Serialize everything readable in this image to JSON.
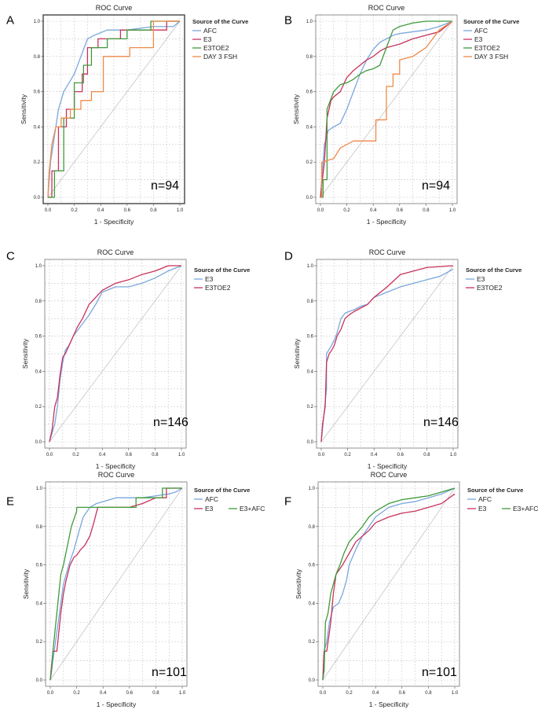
{
  "colors": {
    "blue": "#7aa7dd",
    "red": "#c8325a",
    "green": "#3f9a3a",
    "orange": "#ef8a4a"
  },
  "chart_data": [
    {
      "panel": "A",
      "type": "line",
      "title": "ROC Curve",
      "xlabel": "1 - Specificity",
      "ylabel": "Sensitivity",
      "xlim": [
        0,
        1
      ],
      "ylim": [
        0,
        1
      ],
      "xticks": [
        "0.0",
        "0.2",
        "0.4",
        "0.6",
        "0.8",
        "1.0"
      ],
      "yticks": [
        "0.0",
        "0.2",
        "0.4",
        "0.6",
        "0.8",
        "1.0"
      ],
      "legend_title": "Source of the Curve",
      "legend_position": "right",
      "annotation": "n=94",
      "grid": true,
      "series": [
        {
          "name": "AFC",
          "color": "blue",
          "x": [
            0,
            0.02,
            0.05,
            0.08,
            0.12,
            0.16,
            0.2,
            0.25,
            0.3,
            0.35,
            0.45,
            0.6,
            0.8,
            0.95,
            1
          ],
          "y": [
            0,
            0.2,
            0.35,
            0.5,
            0.6,
            0.65,
            0.7,
            0.8,
            0.9,
            0.92,
            0.95,
            0.95,
            0.97,
            0.97,
            1
          ]
        },
        {
          "name": "E3",
          "color": "red",
          "x": [
            0,
            0.03,
            0.03,
            0.08,
            0.08,
            0.14,
            0.14,
            0.2,
            0.2,
            0.26,
            0.26,
            0.3,
            0.3,
            0.38,
            0.38,
            0.55,
            0.55,
            0.9,
            0.9,
            1
          ],
          "y": [
            0,
            0,
            0.15,
            0.15,
            0.4,
            0.4,
            0.5,
            0.5,
            0.6,
            0.6,
            0.7,
            0.7,
            0.85,
            0.85,
            0.9,
            0.9,
            0.95,
            0.95,
            1,
            1
          ]
        },
        {
          "name": "E3TOE2",
          "color": "green",
          "x": [
            0,
            0.05,
            0.05,
            0.12,
            0.12,
            0.2,
            0.2,
            0.27,
            0.27,
            0.33,
            0.33,
            0.45,
            0.45,
            0.6,
            0.6,
            0.78,
            0.78,
            1
          ],
          "y": [
            0,
            0,
            0.15,
            0.15,
            0.45,
            0.45,
            0.65,
            0.65,
            0.75,
            0.75,
            0.85,
            0.85,
            0.9,
            0.9,
            0.95,
            0.95,
            1,
            1
          ]
        },
        {
          "name": "DAY 3 FSH",
          "color": "orange",
          "x": [
            0,
            0.01,
            0.03,
            0.06,
            0.1,
            0.1,
            0.17,
            0.17,
            0.25,
            0.25,
            0.33,
            0.33,
            0.42,
            0.42,
            0.62,
            0.62,
            0.8,
            0.8,
            1
          ],
          "y": [
            0,
            0.15,
            0.3,
            0.4,
            0.4,
            0.45,
            0.45,
            0.5,
            0.5,
            0.55,
            0.55,
            0.6,
            0.6,
            0.8,
            0.8,
            0.85,
            0.85,
            1,
            1
          ]
        }
      ]
    },
    {
      "panel": "B",
      "type": "line",
      "title": "ROC Curve",
      "xlabel": "1 - Specificity",
      "ylabel": "Sensitivity",
      "xlim": [
        0,
        1
      ],
      "ylim": [
        0,
        1
      ],
      "xticks": [
        "0.0",
        "0.2",
        "0.4",
        "0.6",
        "0.8",
        "1.0"
      ],
      "yticks": [
        "0.0",
        "0.2",
        "0.4",
        "0.6",
        "0.8",
        "1.0"
      ],
      "legend_title": "Source of the Curve",
      "legend_position": "right",
      "annotation": "n=94",
      "grid": true,
      "series": [
        {
          "name": "AFC",
          "color": "blue",
          "x": [
            0,
            0.03,
            0.06,
            0.1,
            0.15,
            0.2,
            0.25,
            0.3,
            0.35,
            0.4,
            0.45,
            0.5,
            0.55,
            0.6,
            0.7,
            0.8,
            0.9,
            1
          ],
          "y": [
            0,
            0.3,
            0.38,
            0.4,
            0.42,
            0.5,
            0.6,
            0.7,
            0.78,
            0.84,
            0.88,
            0.9,
            0.92,
            0.93,
            0.94,
            0.95,
            0.97,
            1
          ]
        },
        {
          "name": "E3",
          "color": "red",
          "x": [
            0,
            0.03,
            0.05,
            0.08,
            0.1,
            0.15,
            0.2,
            0.25,
            0.3,
            0.35,
            0.4,
            0.45,
            0.5,
            0.6,
            0.7,
            0.8,
            0.9,
            1
          ],
          "y": [
            0,
            0.2,
            0.45,
            0.55,
            0.57,
            0.6,
            0.68,
            0.72,
            0.75,
            0.78,
            0.8,
            0.83,
            0.85,
            0.87,
            0.9,
            0.92,
            0.94,
            1
          ]
        },
        {
          "name": "E3TOE2",
          "color": "green",
          "x": [
            0,
            0.02,
            0.02,
            0.05,
            0.05,
            0.1,
            0.15,
            0.2,
            0.25,
            0.3,
            0.35,
            0.4,
            0.45,
            0.5,
            0.55,
            0.6,
            0.7,
            0.8,
            1
          ],
          "y": [
            0,
            0,
            0.1,
            0.1,
            0.5,
            0.6,
            0.64,
            0.65,
            0.67,
            0.7,
            0.72,
            0.73,
            0.75,
            0.85,
            0.95,
            0.97,
            0.99,
            1,
            1
          ]
        },
        {
          "name": "DAY 3 FSH",
          "color": "orange",
          "x": [
            0,
            0.01,
            0.01,
            0.1,
            0.15,
            0.2,
            0.25,
            0.42,
            0.42,
            0.5,
            0.5,
            0.55,
            0.55,
            0.6,
            0.6,
            0.7,
            0.8,
            0.9,
            1
          ],
          "y": [
            0,
            0,
            0.2,
            0.22,
            0.28,
            0.3,
            0.32,
            0.32,
            0.44,
            0.44,
            0.63,
            0.63,
            0.7,
            0.7,
            0.78,
            0.8,
            0.85,
            0.95,
            1
          ]
        }
      ]
    },
    {
      "panel": "C",
      "type": "line",
      "title": "ROC Curve",
      "xlabel": "1 - Specificity",
      "ylabel": "Sensitivity",
      "xlim": [
        0,
        1
      ],
      "ylim": [
        0,
        1
      ],
      "xticks": [
        "0.0",
        "0.2",
        "0.4",
        "0.6",
        "0.8",
        "1.0"
      ],
      "yticks": [
        "0.0",
        "0.2",
        "0.4",
        "0.6",
        "0.8",
        "1.0"
      ],
      "legend_title": "Source of the Curve",
      "legend_position": "right",
      "annotation": "n=146",
      "grid": true,
      "series": [
        {
          "name": "E3",
          "color": "blue",
          "x": [
            0,
            0.02,
            0.04,
            0.06,
            0.08,
            0.1,
            0.12,
            0.15,
            0.18,
            0.21,
            0.25,
            0.3,
            0.35,
            0.4,
            0.5,
            0.6,
            0.7,
            0.8,
            0.9,
            1
          ],
          "y": [
            0,
            0.05,
            0.1,
            0.2,
            0.35,
            0.45,
            0.52,
            0.55,
            0.6,
            0.63,
            0.67,
            0.72,
            0.78,
            0.85,
            0.88,
            0.88,
            0.9,
            0.93,
            0.97,
            1
          ]
        },
        {
          "name": "E3TOE2",
          "color": "red",
          "x": [
            0,
            0.02,
            0.04,
            0.06,
            0.08,
            0.1,
            0.12,
            0.15,
            0.18,
            0.21,
            0.25,
            0.3,
            0.35,
            0.4,
            0.5,
            0.6,
            0.7,
            0.8,
            0.9,
            1
          ],
          "y": [
            0,
            0.07,
            0.2,
            0.25,
            0.38,
            0.48,
            0.5,
            0.55,
            0.6,
            0.65,
            0.7,
            0.78,
            0.82,
            0.86,
            0.9,
            0.92,
            0.95,
            0.97,
            1,
            1
          ]
        }
      ]
    },
    {
      "panel": "D",
      "type": "line",
      "title": "ROC Curve",
      "xlabel": "1 - Specificity",
      "ylabel": "Sensitivity",
      "xlim": [
        0,
        1
      ],
      "ylim": [
        0,
        1
      ],
      "xticks": [
        "0.0",
        "0.2",
        "0.4",
        "0.6",
        "0.8",
        "1.0"
      ],
      "yticks": [
        "0.0",
        "0.2",
        "0.4",
        "0.6",
        "0.8",
        "1.0"
      ],
      "legend_title": "Source of the Curve",
      "legend_position": "right",
      "annotation": "n=146",
      "grid": true,
      "series": [
        {
          "name": "E3",
          "color": "blue",
          "x": [
            0,
            0.02,
            0.04,
            0.04,
            0.08,
            0.1,
            0.12,
            0.15,
            0.18,
            0.21,
            0.25,
            0.3,
            0.35,
            0.4,
            0.5,
            0.6,
            0.7,
            0.8,
            0.9,
            1
          ],
          "y": [
            0,
            0.15,
            0.3,
            0.5,
            0.55,
            0.58,
            0.62,
            0.7,
            0.73,
            0.74,
            0.75,
            0.77,
            0.78,
            0.82,
            0.85,
            0.88,
            0.9,
            0.92,
            0.94,
            0.98
          ]
        },
        {
          "name": "E3TOE2",
          "color": "red",
          "x": [
            0,
            0.01,
            0.03,
            0.04,
            0.06,
            0.08,
            0.1,
            0.12,
            0.15,
            0.18,
            0.21,
            0.25,
            0.3,
            0.35,
            0.4,
            0.5,
            0.6,
            0.7,
            0.8,
            1
          ],
          "y": [
            0,
            0.1,
            0.2,
            0.45,
            0.5,
            0.52,
            0.55,
            0.6,
            0.64,
            0.7,
            0.72,
            0.74,
            0.76,
            0.78,
            0.82,
            0.88,
            0.95,
            0.97,
            0.99,
            1
          ]
        }
      ]
    },
    {
      "panel": "E",
      "type": "line",
      "title": "ROC Curve",
      "xlabel": "1 - Specificity",
      "ylabel": "Sensitivity",
      "xlim": [
        0,
        1
      ],
      "ylim": [
        0,
        1
      ],
      "xticks": [
        "0.0",
        "0.2",
        "0.4",
        "0.6",
        "0.8",
        "1.0"
      ],
      "yticks": [
        "0.0",
        "0.2",
        "0.4",
        "0.6",
        "0.8",
        "1.0"
      ],
      "legend_title": "Source of the Curve",
      "legend_position": "right",
      "annotation": "n=101",
      "grid": true,
      "series": [
        {
          "name": "AFC",
          "color": "blue",
          "x": [
            0,
            0.02,
            0.05,
            0.08,
            0.1,
            0.12,
            0.15,
            0.18,
            0.22,
            0.25,
            0.3,
            0.35,
            0.4,
            0.5,
            0.6,
            0.7,
            0.8,
            0.9,
            0.95,
            1
          ],
          "y": [
            0,
            0.1,
            0.25,
            0.4,
            0.5,
            0.55,
            0.62,
            0.68,
            0.78,
            0.85,
            0.9,
            0.92,
            0.93,
            0.95,
            0.95,
            0.95,
            0.96,
            0.97,
            0.98,
            1
          ]
        },
        {
          "name": "E3",
          "color": "red",
          "x": [
            0,
            0.02,
            0.05,
            0.08,
            0.1,
            0.12,
            0.15,
            0.18,
            0.2,
            0.23,
            0.26,
            0.3,
            0.33,
            0.36,
            0.45,
            0.6,
            0.7,
            0.8,
            0.88,
            0.88,
            0.94,
            0.94,
            1
          ],
          "y": [
            0,
            0.15,
            0.15,
            0.35,
            0.45,
            0.52,
            0.6,
            0.64,
            0.65,
            0.68,
            0.7,
            0.75,
            0.82,
            0.9,
            0.9,
            0.9,
            0.92,
            0.95,
            0.95,
            1,
            1,
            1,
            1
          ]
        },
        {
          "name": "E3+AFC",
          "color": "green",
          "x": [
            0,
            0.01,
            0.02,
            0.05,
            0.08,
            0.1,
            0.13,
            0.16,
            0.2,
            0.2,
            0.3,
            0.4,
            0.5,
            0.65,
            0.65,
            0.85,
            0.85,
            1
          ],
          "y": [
            0,
            0.05,
            0.15,
            0.35,
            0.55,
            0.6,
            0.7,
            0.8,
            0.88,
            0.9,
            0.9,
            0.9,
            0.9,
            0.9,
            0.95,
            0.95,
            1,
            1
          ]
        }
      ]
    },
    {
      "panel": "F",
      "type": "line",
      "title": "ROC Curve",
      "xlabel": "1 - Specificity",
      "ylabel": "Sensitivity",
      "xlim": [
        0,
        1
      ],
      "ylim": [
        0,
        1
      ],
      "xticks": [
        "0.0",
        "0.2",
        "0.4",
        "0.6",
        "0.8",
        "1.0"
      ],
      "yticks": [
        "0.0",
        "0.2",
        "0.4",
        "0.6",
        "0.8",
        "1.0"
      ],
      "legend_title": "Source of the Curve",
      "legend_position": "right",
      "annotation": "n=101",
      "grid": true,
      "series": [
        {
          "name": "AFC",
          "color": "blue",
          "x": [
            0,
            0.01,
            0.03,
            0.05,
            0.08,
            0.12,
            0.15,
            0.18,
            0.2,
            0.25,
            0.3,
            0.35,
            0.4,
            0.5,
            0.6,
            0.7,
            0.8,
            0.9,
            1
          ],
          "y": [
            0,
            0.15,
            0.2,
            0.3,
            0.38,
            0.4,
            0.45,
            0.52,
            0.6,
            0.68,
            0.75,
            0.8,
            0.85,
            0.9,
            0.92,
            0.93,
            0.95,
            0.97,
            1
          ]
        },
        {
          "name": "E3",
          "color": "red",
          "x": [
            0,
            0.01,
            0.03,
            0.06,
            0.08,
            0.1,
            0.12,
            0.15,
            0.2,
            0.25,
            0.3,
            0.35,
            0.4,
            0.5,
            0.6,
            0.7,
            0.8,
            0.9,
            1
          ],
          "y": [
            0,
            0.15,
            0.15,
            0.3,
            0.45,
            0.55,
            0.57,
            0.6,
            0.66,
            0.72,
            0.75,
            0.78,
            0.82,
            0.85,
            0.87,
            0.88,
            0.9,
            0.92,
            0.97
          ]
        },
        {
          "name": "E3+AFC",
          "color": "green",
          "x": [
            0,
            0.01,
            0.02,
            0.04,
            0.06,
            0.08,
            0.1,
            0.13,
            0.16,
            0.2,
            0.25,
            0.3,
            0.35,
            0.4,
            0.5,
            0.6,
            0.7,
            0.8,
            0.9,
            1
          ],
          "y": [
            0,
            0.05,
            0.3,
            0.35,
            0.45,
            0.5,
            0.55,
            0.6,
            0.66,
            0.72,
            0.76,
            0.8,
            0.85,
            0.88,
            0.92,
            0.94,
            0.95,
            0.96,
            0.98,
            1
          ]
        }
      ]
    }
  ]
}
